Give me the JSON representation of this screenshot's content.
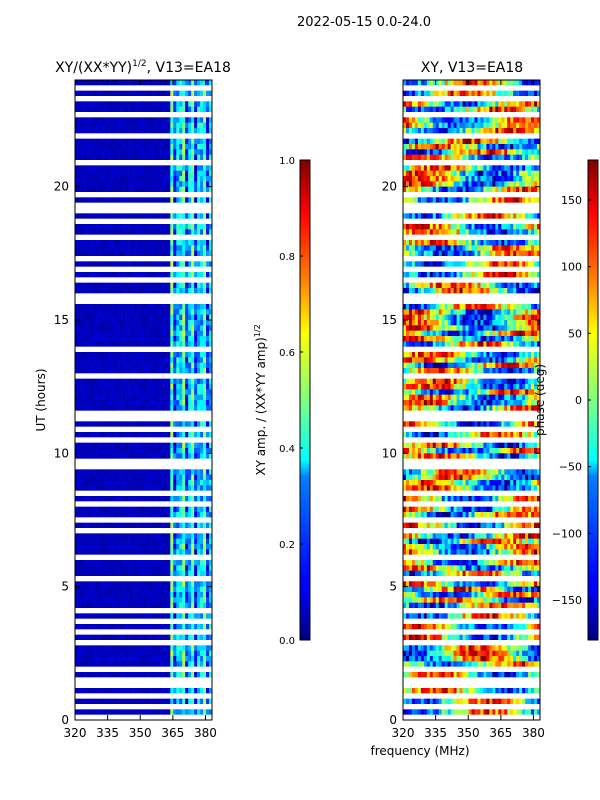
{
  "figure_title": "2022-05-15 0.0-24.0",
  "shared_xlabel": "frequency (MHz)",
  "chart_data": [
    {
      "type": "heatmap",
      "title": "XY/(XX*YY)",
      "title_sup": "1/2",
      "title_suffix": ", V13=EA18",
      "xlabel": "frequency (MHz)",
      "ylabel": "UT (hours)",
      "xlim": [
        320,
        383
      ],
      "ylim": [
        0,
        24
      ],
      "xticks": [
        320,
        335,
        350,
        365,
        380
      ],
      "yticks": [
        0,
        5,
        10,
        15,
        20
      ],
      "colorbar": {
        "label": "XY amp. / (XX*YY amp)",
        "label_sup": "1/2",
        "range": [
          0.0,
          1.0
        ],
        "ticks": [
          "0.0",
          "0.2",
          "0.4",
          "0.6",
          "0.8",
          "1.0"
        ],
        "tick_values": [
          0.0,
          0.2,
          0.4,
          0.6,
          0.8,
          1.0
        ],
        "colormap": "jet"
      },
      "band_start_mhz": 364,
      "flagged_hours": [
        0.15,
        0.5,
        0.85,
        1.2,
        1.55,
        1.9,
        2.4,
        2.95,
        3.3,
        3.7,
        4.1,
        5.25,
        6.05,
        6.4,
        7.1,
        7.6,
        8.2,
        8.5,
        9.6,
        9.75,
        10.5,
        11.0,
        11.4,
        11.55,
        12.9,
        13.9,
        15.8,
        15.95,
        16.6,
        16.85,
        17.3,
        18.1,
        18.7,
        19.1,
        19.35,
        19.7,
        21.0,
        21.9,
        22.7,
        23.3,
        23.65
      ]
    },
    {
      "type": "heatmap",
      "title": "XY, V13=EA18",
      "xlabel": "frequency (MHz)",
      "ylabel": "",
      "xlim": [
        320,
        383
      ],
      "ylim": [
        0,
        24
      ],
      "xticks": [
        320,
        335,
        350,
        365,
        380
      ],
      "yticks": [
        0,
        5,
        10,
        15,
        20
      ],
      "colorbar": {
        "label": "phase (deg)",
        "range": [
          -180,
          180
        ],
        "ticks": [
          "150",
          "100",
          "50",
          "0",
          "−50",
          "−100",
          "−150"
        ],
        "tick_values": [
          150,
          100,
          50,
          0,
          -50,
          -100,
          -150
        ],
        "colormap": "jet"
      },
      "flagged_hours": [
        0.15,
        0.5,
        0.85,
        1.2,
        1.55,
        1.9,
        2.4,
        2.95,
        3.3,
        3.7,
        4.1,
        5.25,
        6.05,
        6.4,
        7.1,
        7.6,
        8.2,
        8.5,
        9.6,
        9.75,
        10.5,
        11.0,
        11.4,
        11.55,
        12.9,
        13.9,
        15.8,
        15.95,
        16.6,
        16.85,
        17.3,
        18.1,
        18.7,
        19.1,
        19.35,
        19.7,
        21.0,
        21.9,
        22.7,
        23.3,
        23.65
      ]
    }
  ]
}
